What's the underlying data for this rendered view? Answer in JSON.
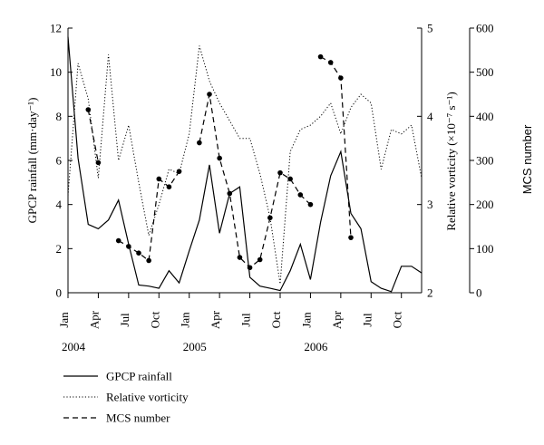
{
  "chart_data": {
    "type": "line",
    "x_ticks": [
      "Jan",
      "Apr",
      "Jul",
      "Oct",
      "Jan",
      "Apr",
      "Jul",
      "Oct",
      "Jan",
      "Apr",
      "Jul",
      "Oct"
    ],
    "year_labels": [
      {
        "label": "2004",
        "month_index": 0
      },
      {
        "label": "2005",
        "month_index": 12
      },
      {
        "label": "2006",
        "month_index": 24
      }
    ],
    "axes": {
      "left": {
        "label": "GPCP rainfall (mm·day⁻¹)",
        "ylim": [
          0,
          12
        ],
        "ticks": [
          "0",
          "2",
          "4",
          "6",
          "8",
          "10",
          "12"
        ]
      },
      "right1": {
        "label": "Relative vorticity (×10⁻⁷ s⁻¹)",
        "ylim": [
          2,
          5
        ],
        "ticks": [
          "2",
          "3",
          "4",
          "5"
        ]
      },
      "right2": {
        "label": "MCS number",
        "ylim": [
          0,
          600
        ],
        "ticks": [
          "0",
          "100",
          "200",
          "300",
          "400",
          "500",
          "600"
        ]
      }
    },
    "legend": [
      {
        "key": "rain",
        "label": "GPCP rainfall"
      },
      {
        "key": "vort",
        "label": "Relative vorticity"
      },
      {
        "key": "mcs",
        "label": "MCS number"
      }
    ],
    "series": [
      {
        "key": "rain",
        "name": "GPCP rainfall",
        "axis": "left",
        "style": "solid",
        "x": [
          0,
          1,
          2,
          3,
          4,
          5,
          6,
          7,
          8,
          9,
          10,
          11,
          12,
          13,
          14,
          15,
          16,
          17,
          18,
          19,
          20,
          21,
          22,
          23,
          24,
          25,
          26,
          27,
          28,
          29,
          30,
          31,
          32,
          33,
          34,
          35
        ],
        "values": [
          11.6,
          6.1,
          3.1,
          2.9,
          3.3,
          4.2,
          2.2,
          0.35,
          0.3,
          0.2,
          1.0,
          0.45,
          1.9,
          3.3,
          5.8,
          2.7,
          4.5,
          4.8,
          0.7,
          0.3,
          0.2,
          0.1,
          1.0,
          2.2,
          0.6,
          3.2,
          5.3,
          6.4,
          3.6,
          2.9,
          0.5,
          0.2,
          0.05,
          1.2,
          1.2,
          0.9
        ]
      },
      {
        "key": "vort",
        "name": "Relative vorticity",
        "axis": "right1",
        "style": "dotted",
        "x": [
          0,
          1,
          2,
          3,
          4,
          5,
          6,
          7,
          8,
          9,
          10,
          11,
          12,
          13,
          14,
          15,
          16,
          17,
          18,
          19,
          20,
          21,
          22,
          23,
          24,
          25,
          26,
          27,
          28,
          29,
          30,
          31,
          32,
          33,
          34,
          35
        ],
        "values": [
          3.1,
          4.6,
          4.2,
          3.3,
          4.7,
          3.5,
          3.9,
          3.25,
          2.65,
          3.0,
          3.4,
          3.35,
          3.8,
          4.8,
          4.4,
          4.15,
          3.95,
          3.75,
          3.75,
          3.35,
          2.85,
          2.1,
          3.6,
          3.85,
          3.9,
          4.0,
          4.15,
          3.8,
          4.1,
          4.25,
          4.15,
          3.4,
          3.85,
          3.8,
          3.9,
          3.3
        ]
      },
      {
        "key": "mcs",
        "name": "MCS number",
        "axis": "right2",
        "style": "dashed",
        "segments": [
          {
            "x": [
              2,
              3
            ],
            "values": [
              415,
              295
            ]
          },
          {
            "x": [
              5,
              6,
              7,
              8,
              9,
              10,
              11,
              12,
              13,
              14,
              15,
              16,
              17,
              18,
              19,
              20,
              21,
              22,
              23,
              24
            ],
            "values": [
              118,
              105,
              90,
              73,
              258,
              240,
              275,
              null,
              340,
              450,
              305,
              225,
              80,
              57,
              75,
              170,
              272,
              258,
              222,
              200
            ]
          },
          {
            "x": [
              25,
              26,
              27,
              28
            ],
            "values": [
              535,
              522,
              487,
              125
            ]
          }
        ]
      }
    ]
  }
}
